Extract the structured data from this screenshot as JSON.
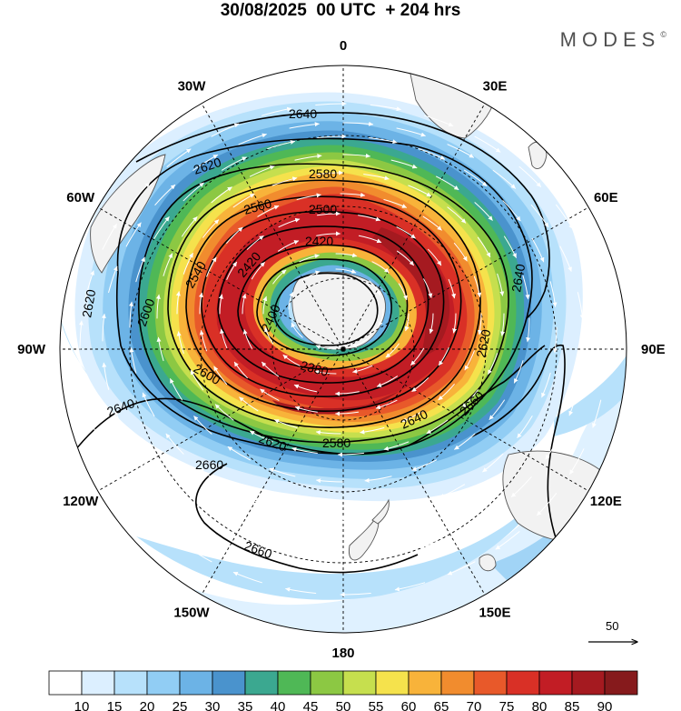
{
  "header": {
    "title": "30/08/2025  00 UTC  + 204 hrs",
    "brand": "MODES",
    "brand_mark": "©"
  },
  "map": {
    "projection": "south-polar-stereographic",
    "longitude_labels": [
      {
        "text": "0",
        "lon": 0
      },
      {
        "text": "30E",
        "lon": 30
      },
      {
        "text": "60E",
        "lon": 60
      },
      {
        "text": "90E",
        "lon": 90
      },
      {
        "text": "120E",
        "lon": 120
      },
      {
        "text": "150E",
        "lon": 150
      },
      {
        "text": "180",
        "lon": 180
      },
      {
        "text": "150W",
        "lon": -150
      },
      {
        "text": "120W",
        "lon": -120
      },
      {
        "text": "90W",
        "lon": -90
      },
      {
        "text": "60W",
        "lon": -60
      },
      {
        "text": "30W",
        "lon": -30
      }
    ],
    "contour_labels": [
      "2640",
      "2620",
      "2580",
      "2560",
      "2500",
      "2420",
      "2620",
      "2600",
      "2540",
      "2420",
      "2400",
      "2380",
      "2640",
      "2620",
      "2600",
      "2640",
      "2660",
      "2620",
      "2580",
      "2640",
      "2660",
      "2660"
    ],
    "reference_vector_value": "50",
    "land_color": "#f2f2f2",
    "coast_color": "#555555"
  },
  "colorbar": {
    "labels": [
      "10",
      "15",
      "20",
      "25",
      "30",
      "35",
      "40",
      "45",
      "50",
      "55",
      "60",
      "65",
      "70",
      "75",
      "80",
      "85",
      "90"
    ],
    "colors": [
      "#ffffff",
      "#dcefff",
      "#b7e1fb",
      "#91cdf4",
      "#6cb3e6",
      "#4a93cd",
      "#3ba890",
      "#4fb856",
      "#8cc843",
      "#c6df4e",
      "#f5e24c",
      "#f8b33a",
      "#f18c2e",
      "#e8592a",
      "#d93026",
      "#c21d25",
      "#a51a20",
      "#861a1c"
    ]
  }
}
